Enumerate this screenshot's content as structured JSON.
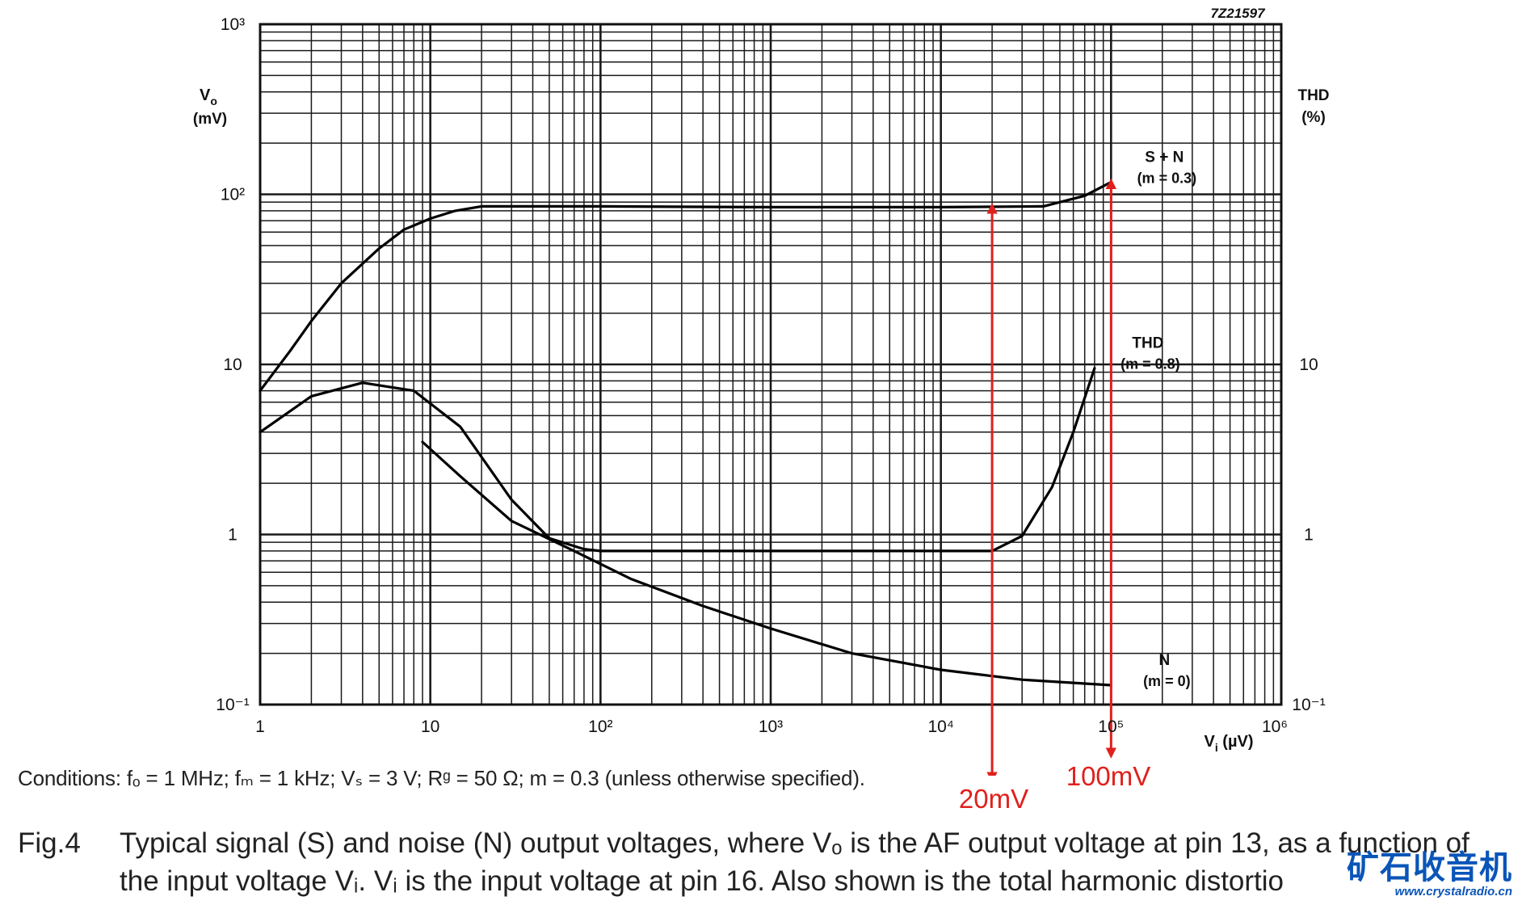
{
  "chart_data": {
    "type": "line",
    "code": "7Z21597",
    "xscale": "log",
    "yscale": "log",
    "xlim": [
      1,
      1000000
    ],
    "ylim": [
      0.1,
      1000
    ],
    "x_ticks": [
      "1",
      "10",
      "10²",
      "10³",
      "10⁴",
      "10⁵",
      "10⁶"
    ],
    "y_ticks_left": [
      "10⁻¹",
      "1",
      "10",
      "10²",
      "10³"
    ],
    "y_ticks_right": [
      "10⁻¹",
      "1",
      "10"
    ],
    "xlabel_main": "V",
    "xlabel_sub": "i",
    "xlabel_unit": "(µV)",
    "ylabel_main": "V",
    "ylabel_sub": "o",
    "ylabel_unit": "(mV)",
    "ylabel_right": "THD",
    "ylabel_right_unit": "(%)",
    "series": [
      {
        "name": "S + N",
        "label_line2": "(m = 0.3)",
        "x": [
          1,
          1.5,
          2,
          3,
          5,
          7,
          10,
          14,
          20,
          100,
          1000,
          10000,
          40000,
          70000,
          100000
        ],
        "y": [
          7,
          12,
          18,
          30,
          48,
          62,
          72,
          80,
          85,
          85,
          84,
          84,
          85,
          98,
          118
        ]
      },
      {
        "name": "THD",
        "label_line2": "(m = 0.8)",
        "x": [
          1,
          2,
          4,
          8,
          15,
          30,
          50,
          80,
          100,
          1000,
          10000,
          20000,
          30000,
          45000,
          60000,
          80000
        ],
        "y": [
          4,
          6.5,
          7.8,
          7,
          4.3,
          1.6,
          0.95,
          0.82,
          0.8,
          0.8,
          0.8,
          0.8,
          0.98,
          1.9,
          4,
          9.5
        ]
      },
      {
        "name": "N",
        "label_line2": "(m = 0)",
        "x": [
          9,
          15,
          30,
          70,
          150,
          400,
          1000,
          3000,
          10000,
          30000,
          100000
        ],
        "y": [
          3.5,
          2.2,
          1.2,
          0.8,
          0.55,
          0.38,
          0.28,
          0.2,
          0.16,
          0.14,
          0.13
        ]
      }
    ],
    "annotations": [
      {
        "text": "20mV",
        "x": 20000,
        "color": "#e0201c"
      },
      {
        "text": "100mV",
        "x": 100000,
        "color": "#e0201c"
      }
    ]
  },
  "conditions": "Conditions: fₒ = 1 MHz; fₘ = 1 kHz; Vₛ = 3 V; Rᵍ = 50 Ω; m = 0.3 (unless otherwise specified).",
  "caption": {
    "fig": "Fig.4",
    "body": "Typical signal (S) and noise (N) output voltages, where Vₒ is the AF output voltage at pin 13, as a function of the input voltage Vᵢ. Vᵢ is the input voltage at pin 16. Also shown is the total harmonic distortio"
  },
  "watermark": {
    "main": "矿石收音机",
    "sub": "www.crystalradio.cn"
  }
}
